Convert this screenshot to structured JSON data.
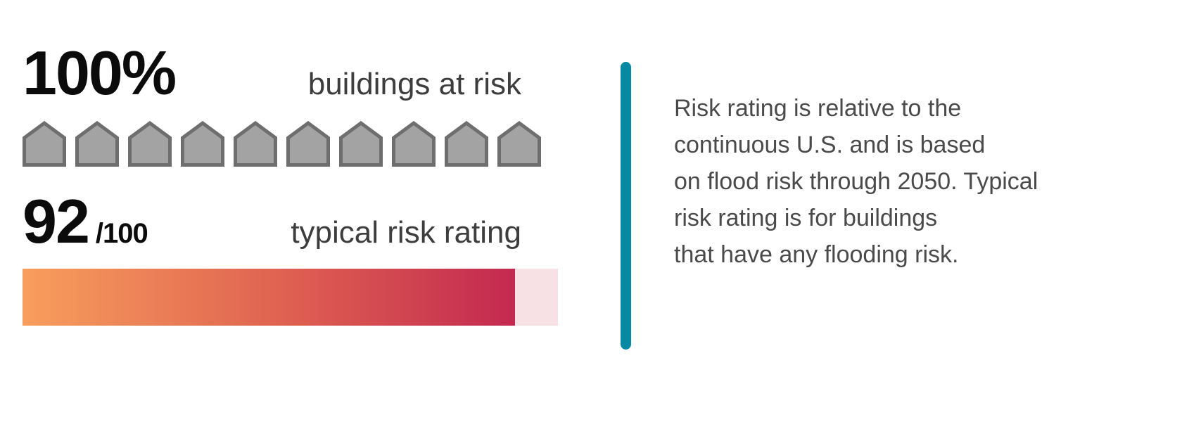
{
  "buildings_at_risk": {
    "percent": "100%",
    "label": "buildings at risk",
    "icon_count": 10
  },
  "risk_rating": {
    "score": "92",
    "denominator": "/100",
    "label": "typical risk rating",
    "value": 92,
    "max": 100
  },
  "note": {
    "lines": [
      "Risk rating is relative to the",
      "continuous U.S. and is based",
      "on flood risk through 2050. Typical",
      "risk rating is for buildings",
      "that have any flooding risk."
    ]
  },
  "colors": {
    "accent_teal": "#0788a3",
    "bar_gradient_start": "#f89e5c",
    "bar_gradient_end": "#c32950",
    "bar_track_pink": "#f8e1e5",
    "house_fill": "#a3a3a3",
    "house_stroke": "#6e6e6e",
    "number_text": "#0b0b0b",
    "label_text": "#3d3d3d",
    "note_text": "#4a4a4a"
  },
  "chart_data": {
    "type": "bar",
    "categories": [
      "buildings at risk (%)",
      "typical risk rating (/100)"
    ],
    "values": [
      100,
      92
    ],
    "title": "",
    "xlabel": "",
    "ylabel": "",
    "ylim": [
      0,
      100
    ],
    "legend": "none",
    "notes": "pictograph of 10 building icons represents 100% of buildings at risk; horizontal gradient bar filled to 92 of 100"
  }
}
